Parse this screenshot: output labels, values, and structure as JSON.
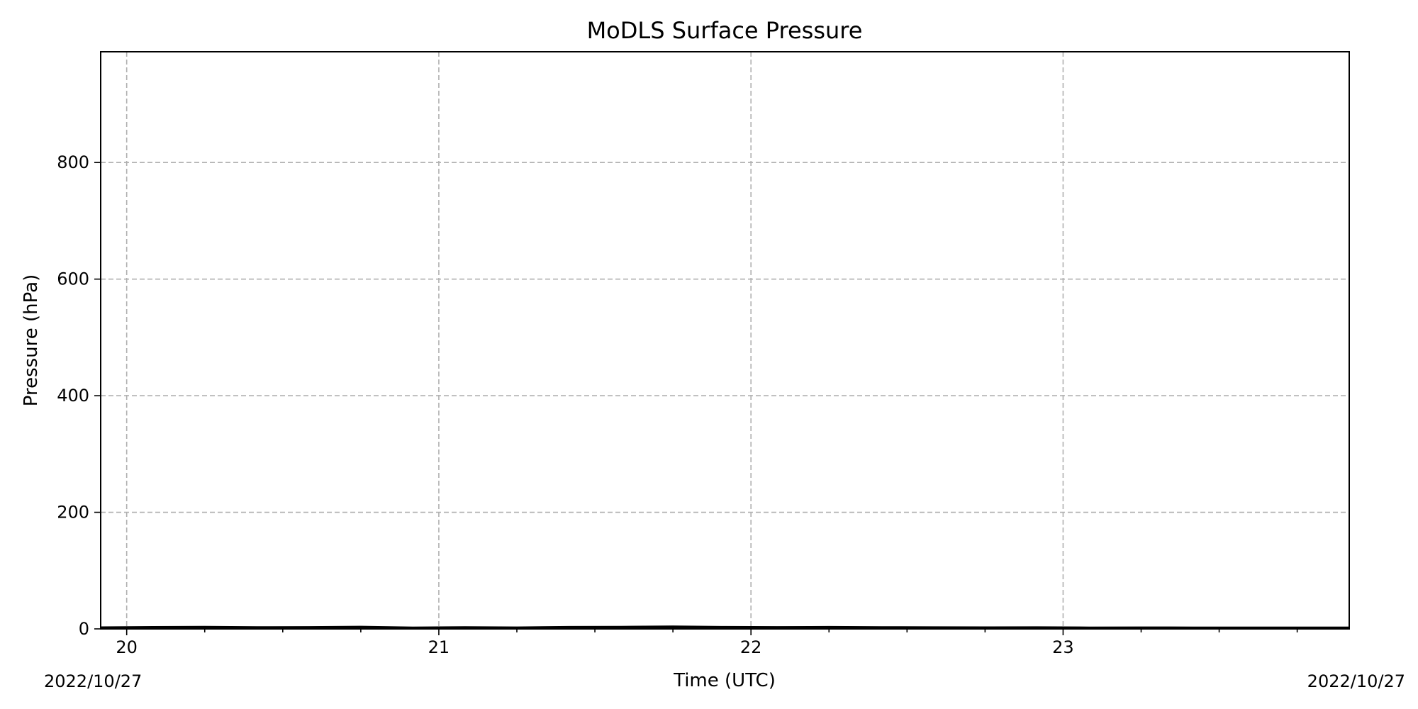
{
  "chart_data": {
    "type": "line",
    "title": "MoDLS Surface Pressure",
    "xlabel": "Time (UTC)",
    "ylabel": "Pressure (hPa)",
    "x_axis": {
      "type": "time",
      "start": "2022-10-27T19:55",
      "end": "2022-10-27T23:55",
      "major_ticks": [
        {
          "value": "2022-10-27T20:00",
          "label": "20"
        },
        {
          "value": "2022-10-27T21:00",
          "label": "21"
        },
        {
          "value": "2022-10-27T22:00",
          "label": "22"
        },
        {
          "value": "2022-10-27T23:00",
          "label": "23"
        }
      ],
      "minor_tick_interval_minutes": 15,
      "start_date_label": "2022/10/27",
      "end_date_label": "2022/10/27"
    },
    "y_axis": {
      "ylim": [
        0,
        990
      ],
      "ticks": [
        0,
        200,
        400,
        600,
        800
      ]
    },
    "grid": true,
    "series": [
      {
        "color": "#000000",
        "x": [
          "2022-10-27T19:55",
          "2022-10-27T20:05",
          "2022-10-27T20:15",
          "2022-10-27T20:25",
          "2022-10-27T20:35",
          "2022-10-27T20:45",
          "2022-10-27T20:55",
          "2022-10-27T21:05",
          "2022-10-27T21:15",
          "2022-10-27T21:25",
          "2022-10-27T21:35",
          "2022-10-27T21:45",
          "2022-10-27T21:55",
          "2022-10-27T22:05",
          "2022-10-27T22:15",
          "2022-10-27T22:25",
          "2022-10-27T22:35",
          "2022-10-27T22:45",
          "2022-10-27T22:55",
          "2022-10-27T23:05",
          "2022-10-27T23:15",
          "2022-10-27T23:25",
          "2022-10-27T23:35",
          "2022-10-27T23:45",
          "2022-10-27T23:55"
        ],
        "y": [
          1.8,
          2.4,
          2.8,
          2.1,
          2.3,
          2.9,
          1.6,
          2.2,
          1.7,
          2.5,
          2.8,
          3.3,
          2.6,
          2.3,
          2.6,
          2.2,
          2.0,
          1.8,
          1.9,
          1.6,
          1.7,
          1.6,
          1.5,
          1.6,
          1.5
        ]
      }
    ]
  }
}
